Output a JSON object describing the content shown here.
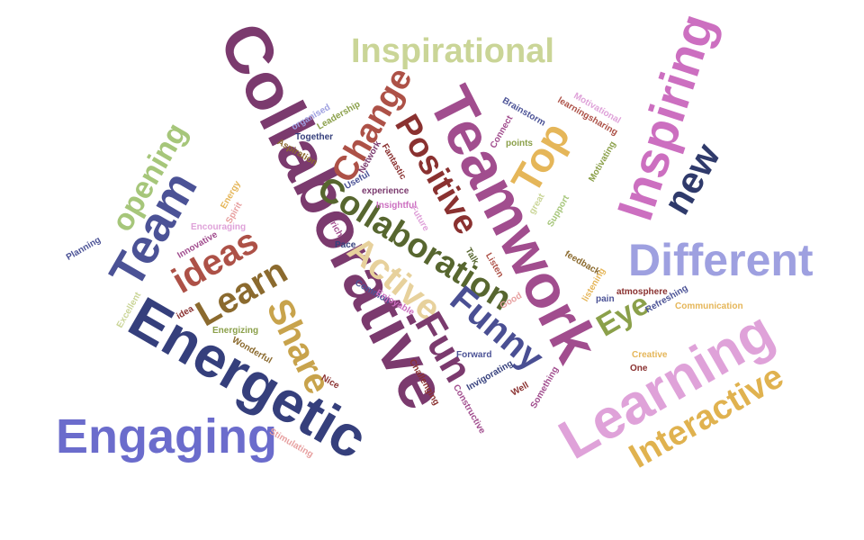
{
  "words": [
    {
      "text": "Collaborative",
      "color": "#7b3a6e"
    },
    {
      "text": "Teamwork",
      "color": "#a14d8e"
    },
    {
      "text": "Inspiring",
      "color": "#cc6fc0"
    },
    {
      "text": "Energetic",
      "color": "#353f7c"
    },
    {
      "text": "Engaging",
      "color": "#6b6ccc"
    },
    {
      "text": "Learning",
      "color": "#dfa2d9"
    },
    {
      "text": "Different",
      "color": "#9ea0e0"
    },
    {
      "text": "Inspirational",
      "color": "#cad597"
    },
    {
      "text": "Interactive",
      "color": "#e0b24f"
    },
    {
      "text": "Collaboration",
      "color": "#57662f"
    },
    {
      "text": "Team",
      "color": "#4b5296"
    },
    {
      "text": "Positive",
      "color": "#8a3130"
    },
    {
      "text": "Change",
      "color": "#ad5147"
    },
    {
      "text": "Active",
      "color": "#e7d19c"
    },
    {
      "text": "Funny",
      "color": "#4a4f93"
    },
    {
      "text": "Fun",
      "color": "#7b3a6e"
    },
    {
      "text": "Share",
      "color": "#c8a34c"
    },
    {
      "text": "Learn",
      "color": "#8b6a2e"
    },
    {
      "text": "ideas",
      "color": "#ad5147"
    },
    {
      "text": "opening",
      "color": "#a6c67a"
    },
    {
      "text": "Top",
      "color": "#e5b659"
    },
    {
      "text": "new",
      "color": "#2f3a6b"
    },
    {
      "text": "Eye",
      "color": "#8ba04a"
    },
    {
      "text": "organised",
      "color": "#9ea0e0"
    },
    {
      "text": "Leadership",
      "color": "#8ba04a"
    },
    {
      "text": "Together",
      "color": "#353f7c"
    },
    {
      "text": "Aspiration",
      "color": "#8b6a2e"
    },
    {
      "text": "Network",
      "color": "#7b3a6e"
    },
    {
      "text": "Fantastic",
      "color": "#8a3130"
    },
    {
      "text": "Useful",
      "color": "#4b5296"
    },
    {
      "text": "experience",
      "color": "#7b3a6e"
    },
    {
      "text": "Insightful",
      "color": "#cc6fc0"
    },
    {
      "text": "Future",
      "color": "#dfa2d9"
    },
    {
      "text": "rich",
      "color": "#a14d8e"
    },
    {
      "text": "Pace",
      "color": "#353f7c"
    },
    {
      "text": "Energy",
      "color": "#e5b659"
    },
    {
      "text": "Spirit",
      "color": "#e7a0a0"
    },
    {
      "text": "Encouraging",
      "color": "#dfa2d9"
    },
    {
      "text": "Innovative",
      "color": "#a14d8e"
    },
    {
      "text": "Planning",
      "color": "#4b5296"
    },
    {
      "text": "Excellent",
      "color": "#cad597"
    },
    {
      "text": "idea",
      "color": "#8a3130"
    },
    {
      "text": "Energizing",
      "color": "#8ba04a"
    },
    {
      "text": "Wonderful",
      "color": "#8b6a2e"
    },
    {
      "text": "Nice",
      "color": "#8a3130"
    },
    {
      "text": "Stimulating",
      "color": "#e7a0a0"
    },
    {
      "text": "Common",
      "color": "#4b5296"
    },
    {
      "text": "Enjoyable",
      "color": "#cc6fc0"
    },
    {
      "text": "Brainstorm",
      "color": "#4b5296"
    },
    {
      "text": "Connect",
      "color": "#a14d8e"
    },
    {
      "text": "points",
      "color": "#8ba04a"
    },
    {
      "text": "learningsharing",
      "color": "#ad5147"
    },
    {
      "text": "Motivational",
      "color": "#dfa2d9"
    },
    {
      "text": "Motivating",
      "color": "#8ba04a"
    },
    {
      "text": "great",
      "color": "#cad597"
    },
    {
      "text": "Support",
      "color": "#a6c67a"
    },
    {
      "text": "Talk",
      "color": "#57662f"
    },
    {
      "text": "Listen",
      "color": "#ad5147"
    },
    {
      "text": "Good",
      "color": "#e7a0a0"
    },
    {
      "text": "Forward",
      "color": "#4b5296"
    },
    {
      "text": "Invigorating",
      "color": "#353f7c"
    },
    {
      "text": "Challenging",
      "color": "#8a3130"
    },
    {
      "text": "Constructive",
      "color": "#a14d8e"
    },
    {
      "text": "Well",
      "color": "#8a3130"
    },
    {
      "text": "Something",
      "color": "#a14d8e"
    },
    {
      "text": "feedback",
      "color": "#8b6a2e"
    },
    {
      "text": "listening",
      "color": "#e5b659"
    },
    {
      "text": "pain",
      "color": "#4b5296"
    },
    {
      "text": "atmosphere",
      "color": "#8a3130"
    },
    {
      "text": "Refreshing",
      "color": "#4b5296"
    },
    {
      "text": "Communication",
      "color": "#e5b659"
    },
    {
      "text": "Creative",
      "color": "#e5b659"
    },
    {
      "text": "One",
      "color": "#8a3130"
    }
  ]
}
